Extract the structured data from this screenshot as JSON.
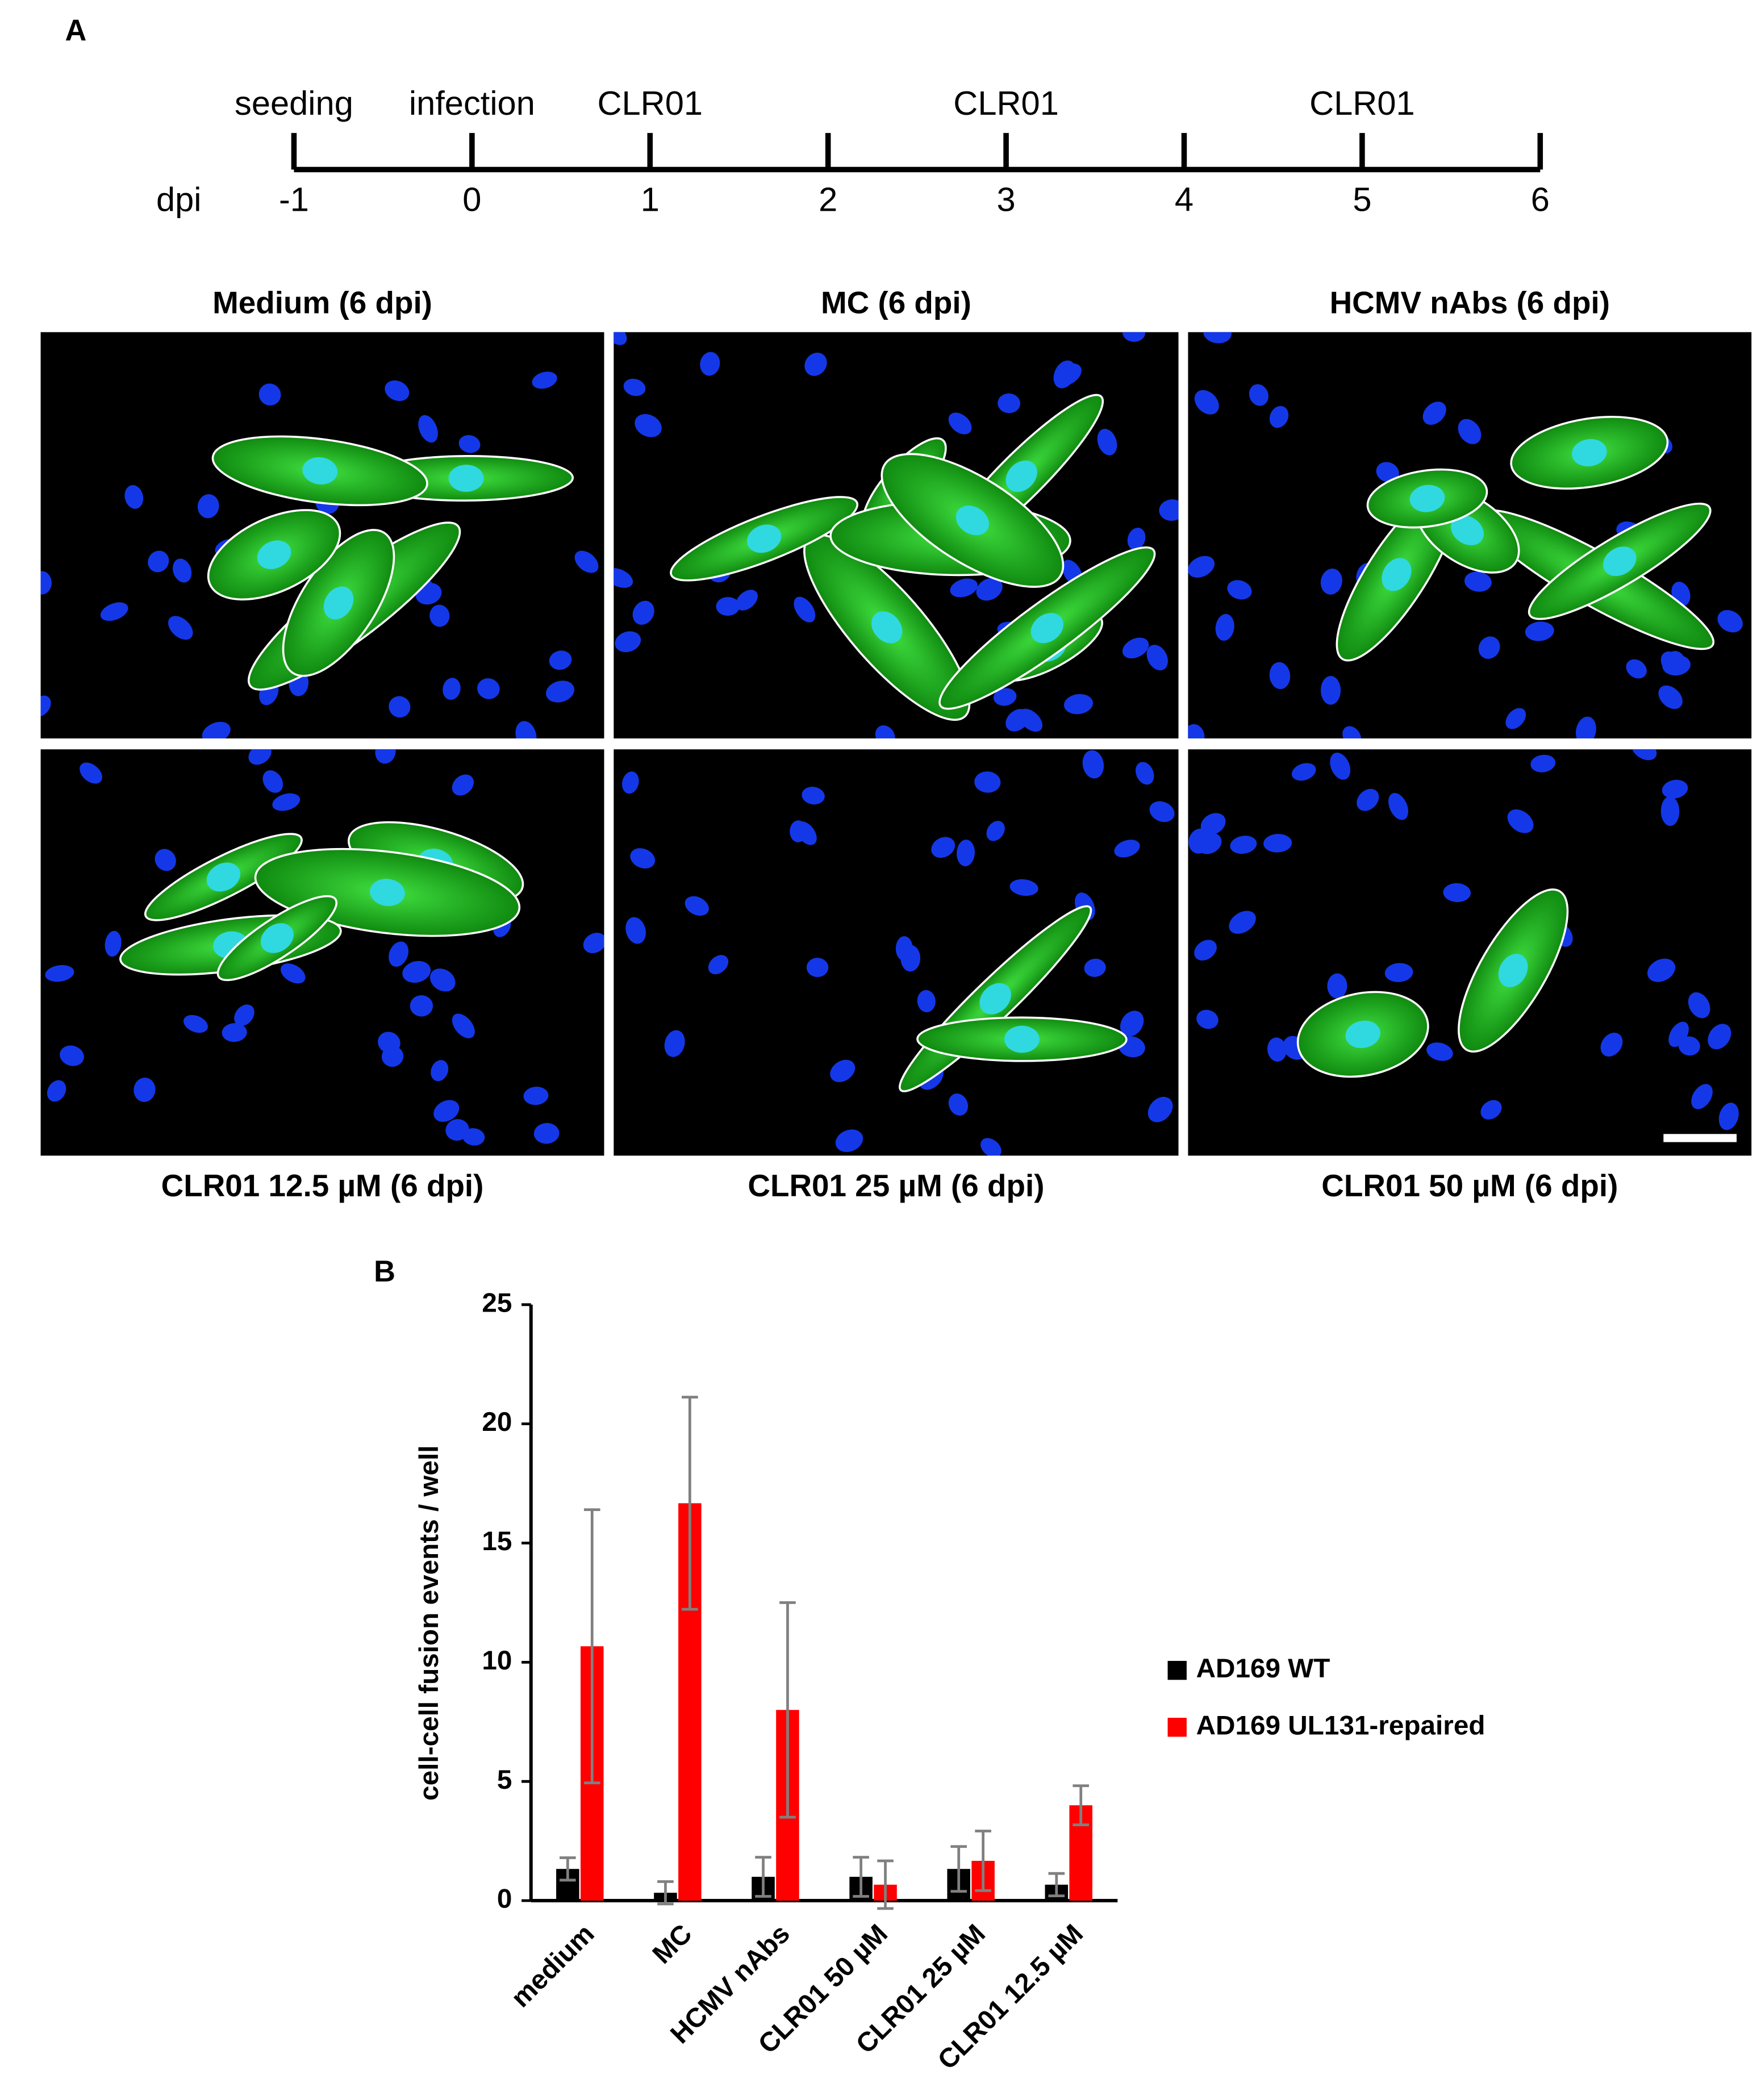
{
  "panel_a": {
    "label": "A",
    "timeline": {
      "axis_label": "dpi",
      "xlim": [
        -1,
        6
      ],
      "ticks": [
        -1,
        0,
        1,
        2,
        3,
        4,
        5,
        6
      ],
      "event_labels": [
        "seeding",
        "infection",
        "CLR01",
        null,
        "CLR01",
        null,
        "CLR01",
        null
      ]
    },
    "micrographs": [
      {
        "title": "Medium (6 dpi)"
      },
      {
        "title": "MC (6 dpi)"
      },
      {
        "title": "HCMV nAbs (6 dpi)"
      },
      {
        "title": "CLR01 12.5 µM (6 dpi)"
      },
      {
        "title": "CLR01 25 µM (6 dpi)"
      },
      {
        "title": "CLR01 50 µM (6 dpi)"
      }
    ]
  },
  "chart_data": {
    "type": "bar",
    "panel_label": "B",
    "ylabel": "cell-cell fusion events / well",
    "categories": [
      "medium",
      "MC",
      "HCMV nAbs",
      "CLR01 50 µM",
      "CLR01 25 µM",
      "CLR01 12.5 µM"
    ],
    "series": [
      {
        "name": "AD169 WT",
        "color": "#000000",
        "values": [
          1.33,
          0.33,
          1.0,
          1.0,
          1.33,
          0.67
        ],
        "errors": [
          0.47,
          0.47,
          0.82,
          0.82,
          0.94,
          0.47
        ]
      },
      {
        "name": "AD169 UL131-repaired",
        "color": "#ff0000",
        "values": [
          10.67,
          16.67,
          8.0,
          0.67,
          1.67,
          4.0
        ],
        "errors": [
          5.73,
          4.45,
          4.5,
          1.0,
          1.25,
          0.82
        ]
      }
    ],
    "ylim": [
      0,
      25
    ],
    "yticks": [
      0,
      5,
      10,
      15,
      20,
      25
    ],
    "legend": "right",
    "error_color": "#808080"
  }
}
